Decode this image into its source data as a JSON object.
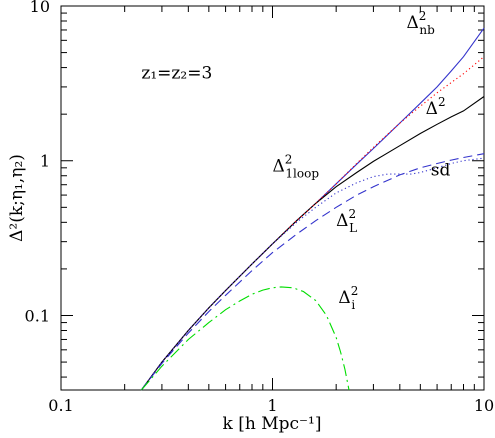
{
  "chart_data": {
    "type": "line",
    "xscale": "log",
    "yscale": "log",
    "xlim": [
      0.1,
      10
    ],
    "ylim": [
      0.033,
      10
    ],
    "xlabel": "k [h Mpc⁻¹]",
    "ylabel": "Δ²(k;η₁,η₂)",
    "xticks": [
      0.1,
      1,
      10
    ],
    "xtick_labels": [
      "0.1",
      "1",
      "10"
    ],
    "yticks": [
      0.1,
      1,
      10
    ],
    "ytick_labels": [
      "0.1",
      "1",
      "10"
    ],
    "grid": false,
    "legend": "none",
    "annotations": [
      {
        "id": "z",
        "text": "z₁=z₂=3",
        "x": 0.24,
        "y": 3.4
      },
      {
        "id": "nb",
        "text": "Δ²nb",
        "x": 4.3,
        "y": 7.2
      },
      {
        "id": "full",
        "text": "Δ²",
        "x": 5.3,
        "y": 2.0
      },
      {
        "id": "oneloop",
        "text": "Δ²1loop",
        "x": 1.0,
        "y": 0.85
      },
      {
        "id": "sd",
        "text": "sd",
        "x": 5.6,
        "y": 0.8
      },
      {
        "id": "lin",
        "text": "Δ²L",
        "x": 2.0,
        "y": 0.38
      },
      {
        "id": "i",
        "text": "Δ²i",
        "x": 2.05,
        "y": 0.12
      }
    ],
    "series": [
      {
        "key": "nb",
        "color": "#3333cc",
        "style": "solid",
        "x": [
          0.24,
          0.3,
          0.4,
          0.5,
          0.6,
          0.8,
          1.0,
          1.3,
          1.6,
          2.0,
          2.5,
          3.0,
          4.0,
          5.0,
          6.0,
          7.0,
          8.0,
          10.0
        ],
        "y": [
          0.033,
          0.05,
          0.08,
          0.112,
          0.145,
          0.215,
          0.29,
          0.41,
          0.53,
          0.71,
          0.95,
          1.2,
          1.75,
          2.35,
          3.0,
          3.8,
          4.7,
          7.2
        ]
      },
      {
        "key": "full",
        "color": "#000000",
        "style": "solid",
        "x": [
          0.24,
          0.3,
          0.4,
          0.5,
          0.6,
          0.8,
          1.0,
          1.3,
          1.6,
          2.0,
          2.5,
          3.0,
          4.0,
          5.0,
          6.0,
          7.0,
          8.0,
          10.0
        ],
        "y": [
          0.033,
          0.05,
          0.08,
          0.112,
          0.145,
          0.215,
          0.29,
          0.41,
          0.53,
          0.68,
          0.84,
          0.99,
          1.25,
          1.5,
          1.72,
          1.92,
          2.1,
          2.6
        ]
      },
      {
        "key": "oneloop",
        "color": "#ff0000",
        "style": "dotted",
        "x": [
          0.24,
          0.3,
          0.4,
          0.5,
          0.6,
          0.8,
          1.0,
          1.3,
          1.6,
          2.0,
          2.5,
          3.0,
          4.0,
          5.0,
          6.0,
          7.0,
          8.0,
          10.0
        ],
        "y": [
          0.033,
          0.05,
          0.08,
          0.112,
          0.145,
          0.215,
          0.29,
          0.41,
          0.53,
          0.71,
          0.96,
          1.22,
          1.75,
          2.25,
          2.75,
          3.2,
          3.65,
          4.7
        ]
      },
      {
        "key": "lin",
        "color": "#3333cc",
        "style": "dashed",
        "x": [
          0.24,
          0.3,
          0.4,
          0.5,
          0.6,
          0.8,
          1.0,
          1.3,
          1.6,
          2.0,
          2.5,
          3.0,
          4.0,
          5.0,
          6.0,
          7.0,
          8.0,
          10.0
        ],
        "y": [
          0.033,
          0.049,
          0.077,
          0.106,
          0.135,
          0.195,
          0.255,
          0.335,
          0.41,
          0.5,
          0.6,
          0.68,
          0.81,
          0.9,
          0.96,
          1.01,
          1.05,
          1.11
        ]
      },
      {
        "key": "sd",
        "color": "#3333cc",
        "style": "dotted",
        "x": [
          0.24,
          0.3,
          0.4,
          0.5,
          0.6,
          0.8,
          1.0,
          1.3,
          1.6,
          2.0,
          2.5,
          3.0,
          3.5,
          4.0,
          4.5,
          5.0,
          6.0,
          7.0,
          8.0,
          10.0
        ],
        "y": [
          0.033,
          0.05,
          0.08,
          0.112,
          0.145,
          0.215,
          0.29,
          0.4,
          0.5,
          0.62,
          0.72,
          0.79,
          0.82,
          0.82,
          0.82,
          0.84,
          0.9,
          0.96,
          1.0,
          1.04
        ]
      },
      {
        "key": "i",
        "color": "#00dd00",
        "style": "dashdot",
        "x": [
          0.24,
          0.3,
          0.4,
          0.5,
          0.6,
          0.7,
          0.8,
          0.9,
          1.0,
          1.1,
          1.25,
          1.4,
          1.6,
          1.8,
          2.0,
          2.1,
          2.2,
          2.3
        ],
        "y": [
          0.033,
          0.047,
          0.07,
          0.09,
          0.109,
          0.124,
          0.137,
          0.146,
          0.151,
          0.153,
          0.151,
          0.143,
          0.125,
          0.1,
          0.072,
          0.058,
          0.045,
          0.033
        ]
      }
    ]
  }
}
